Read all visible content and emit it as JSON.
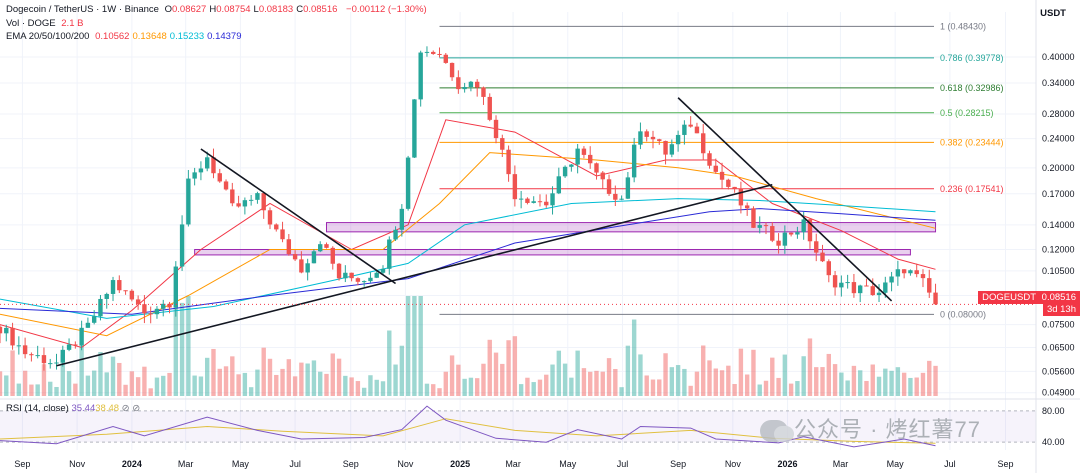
{
  "header": {
    "symbol": "Dogecoin / TetherUS · 1W · Binance",
    "ohlc": [
      {
        "k": "O",
        "v": "0.08627"
      },
      {
        "k": "H",
        "v": "0.08754"
      },
      {
        "k": "L",
        "v": "0.08183"
      },
      {
        "k": "C",
        "v": "0.08516"
      }
    ],
    "change": "−0.00112 (−1.30%)",
    "vol_label": "Vol · DOGE",
    "vol_value": "2.1 B",
    "ema_label": "EMA 20/50/100/200",
    "ema_values": [
      {
        "v": "0.10562",
        "color": "#f23645"
      },
      {
        "v": "0.13648",
        "color": "#ff9800"
      },
      {
        "v": "0.15233",
        "color": "#00bcd4"
      },
      {
        "v": "0.14379",
        "color": "#2a2ad6"
      }
    ],
    "rsi_label": "RSI (14, close)",
    "rsi_values": [
      {
        "v": "35.44",
        "color": "#7e57c2"
      },
      {
        "v": "38.48",
        "color": "#e0c040"
      }
    ]
  },
  "axis": {
    "unit": "USDT",
    "current_symbol": "DOGEUSDT",
    "current_price": "0.08516",
    "countdown": "3d 13h",
    "rsi_ticks": [
      "80.00",
      "40.00"
    ]
  },
  "watermark": "公众号 · 烤红薯77",
  "chart_data": {
    "type": "candlestick",
    "title": "Dogecoin / TetherUS · 1W · Binance",
    "y_scale": "log",
    "ylim": [
      0.048,
      0.53
    ],
    "y_ticks": [
      0.4,
      0.34,
      0.28,
      0.24,
      0.2,
      0.17,
      0.14,
      0.12,
      0.105,
      0.09,
      0.075,
      0.065,
      0.056,
      0.049
    ],
    "y_tick_labels": [
      "0.40000",
      "0.34000",
      "0.28000",
      "0.24000",
      "0.20000",
      "0.17000",
      "0.14000",
      "0.12000",
      "0.10500",
      "0.09000",
      "0.07500",
      "0.06500",
      "0.05600",
      "0.04900"
    ],
    "x_start": "2023-08-07",
    "x_end": "2026-10-05",
    "x_ticks": [
      {
        "d": "2023-09-01",
        "label": "Sep",
        "bold": false
      },
      {
        "d": "2023-11-01",
        "label": "Nov",
        "bold": false
      },
      {
        "d": "2024-01-01",
        "label": "2024",
        "bold": true
      },
      {
        "d": "2024-03-01",
        "label": "Mar",
        "bold": false
      },
      {
        "d": "2024-05-01",
        "label": "May",
        "bold": false
      },
      {
        "d": "2024-07-01",
        "label": "Jul",
        "bold": false
      },
      {
        "d": "2024-09-01",
        "label": "Sep",
        "bold": false
      },
      {
        "d": "2024-11-01",
        "label": "Nov",
        "bold": false
      },
      {
        "d": "2025-01-01",
        "label": "2025",
        "bold": true
      },
      {
        "d": "2025-03-01",
        "label": "Mar",
        "bold": false
      },
      {
        "d": "2025-05-01",
        "label": "May",
        "bold": false
      },
      {
        "d": "2025-07-01",
        "label": "Jul",
        "bold": false
      },
      {
        "d": "2025-09-01",
        "label": "Sep",
        "bold": false
      },
      {
        "d": "2025-11-01",
        "label": "Nov",
        "bold": false
      },
      {
        "d": "2026-01-01",
        "label": "2026",
        "bold": true
      },
      {
        "d": "2026-03-01",
        "label": "Mar",
        "bold": false
      },
      {
        "d": "2026-05-01",
        "label": "May",
        "bold": false
      },
      {
        "d": "2026-07-01",
        "label": "Jul",
        "bold": false
      },
      {
        "d": "2026-09-01",
        "label": "Sep",
        "bold": false
      }
    ],
    "anchors": [
      {
        "d": "2023-08-07",
        "p": 0.074
      },
      {
        "d": "2023-09-04",
        "p": 0.063
      },
      {
        "d": "2023-10-09",
        "p": 0.059
      },
      {
        "d": "2023-11-13",
        "p": 0.074
      },
      {
        "d": "2023-12-11",
        "p": 0.098
      },
      {
        "d": "2024-01-15",
        "p": 0.081
      },
      {
        "d": "2024-02-12",
        "p": 0.087
      },
      {
        "d": "2024-03-04",
        "p": 0.18
      },
      {
        "d": "2024-03-25",
        "p": 0.215
      },
      {
        "d": "2024-04-22",
        "p": 0.155
      },
      {
        "d": "2024-05-20",
        "p": 0.165
      },
      {
        "d": "2024-06-17",
        "p": 0.125
      },
      {
        "d": "2024-07-08",
        "p": 0.107
      },
      {
        "d": "2024-07-29",
        "p": 0.128
      },
      {
        "d": "2024-08-19",
        "p": 0.101
      },
      {
        "d": "2024-09-16",
        "p": 0.1
      },
      {
        "d": "2024-10-07",
        "p": 0.11
      },
      {
        "d": "2024-10-28",
        "p": 0.16
      },
      {
        "d": "2024-11-18",
        "p": 0.42
      },
      {
        "d": "2024-12-09",
        "p": 0.41
      },
      {
        "d": "2024-12-30",
        "p": 0.34
      },
      {
        "d": "2025-01-20",
        "p": 0.34
      },
      {
        "d": "2025-02-10",
        "p": 0.25
      },
      {
        "d": "2025-03-03",
        "p": 0.17
      },
      {
        "d": "2025-04-07",
        "p": 0.16
      },
      {
        "d": "2025-05-12",
        "p": 0.225
      },
      {
        "d": "2025-06-09",
        "p": 0.18
      },
      {
        "d": "2025-06-30",
        "p": 0.165
      },
      {
        "d": "2025-07-21",
        "p": 0.26
      },
      {
        "d": "2025-08-18",
        "p": 0.22
      },
      {
        "d": "2025-09-15",
        "p": 0.265
      },
      {
        "d": "2025-10-13",
        "p": 0.195
      },
      {
        "d": "2025-11-03",
        "p": 0.17
      },
      {
        "d": "2025-11-24",
        "p": 0.14
      },
      {
        "d": "2025-12-22",
        "p": 0.128
      },
      {
        "d": "2026-01-19",
        "p": 0.14
      },
      {
        "d": "2026-02-16",
        "p": 0.1
      },
      {
        "d": "2026-03-16",
        "p": 0.094
      },
      {
        "d": "2026-04-13",
        "p": 0.092
      },
      {
        "d": "2026-05-11",
        "p": 0.107
      },
      {
        "d": "2026-06-01",
        "p": 0.097
      },
      {
        "d": "2026-06-15",
        "p": 0.0852
      }
    ],
    "fib_levels": [
      {
        "ratio": "1",
        "value": "0.48430",
        "p": 0.4843,
        "color": "#787b86"
      },
      {
        "ratio": "0.786",
        "value": "0.39778",
        "p": 0.39778,
        "color": "#26a69a"
      },
      {
        "ratio": "0.618",
        "value": "0.32986",
        "p": 0.32986,
        "color": "#2e7d32"
      },
      {
        "ratio": "0.5",
        "value": "0.28215",
        "p": 0.28215,
        "color": "#4caf50"
      },
      {
        "ratio": "0.382",
        "value": "0.23444",
        "p": 0.23444,
        "color": "#ff9800"
      },
      {
        "ratio": "0.236",
        "value": "0.17541",
        "p": 0.17541,
        "color": "#f23645"
      },
      {
        "ratio": "0",
        "value": "0.08000",
        "p": 0.08,
        "color": "#787b86"
      }
    ],
    "fib_start": "2024-12-09",
    "zones": [
      {
        "from": "2024-08-05",
        "to": "2026-06-15",
        "low": 0.134,
        "high": 0.142
      },
      {
        "from": "2024-03-11",
        "to": "2026-05-18",
        "low": 0.116,
        "high": 0.12
      }
    ],
    "trendlines": [
      {
        "d1": "2024-03-18",
        "p1": 0.225,
        "d2": "2024-10-21",
        "p2": 0.097
      },
      {
        "d1": "2023-10-09",
        "p1": 0.058,
        "d2": "2025-12-15",
        "p2": 0.18
      },
      {
        "d1": "2025-09-01",
        "p1": 0.31,
        "d2": "2026-04-27",
        "p2": 0.087
      }
    ],
    "ema": [
      {
        "name": "EMA 20",
        "color": "#f23645",
        "pts": [
          [
            "2023-08-07",
            0.075
          ],
          [
            "2023-11-06",
            0.065
          ],
          [
            "2024-01-01",
            0.082
          ],
          [
            "2024-03-18",
            0.12
          ],
          [
            "2024-06-03",
            0.16
          ],
          [
            "2024-09-02",
            0.12
          ],
          [
            "2024-11-04",
            0.14
          ],
          [
            "2024-12-16",
            0.27
          ],
          [
            "2025-03-03",
            0.25
          ],
          [
            "2025-06-02",
            0.19
          ],
          [
            "2025-08-18",
            0.21
          ],
          [
            "2025-10-13",
            0.21
          ],
          [
            "2025-12-15",
            0.16
          ],
          [
            "2026-03-02",
            0.135
          ],
          [
            "2026-05-04",
            0.113
          ],
          [
            "2026-06-15",
            0.106
          ]
        ]
      },
      {
        "name": "EMA 50",
        "color": "#ff9800",
        "pts": [
          [
            "2023-08-07",
            0.08
          ],
          [
            "2023-12-04",
            0.07
          ],
          [
            "2024-03-04",
            0.09
          ],
          [
            "2024-06-03",
            0.12
          ],
          [
            "2024-10-07",
            0.12
          ],
          [
            "2024-12-09",
            0.16
          ],
          [
            "2025-02-03",
            0.22
          ],
          [
            "2025-06-02",
            0.21
          ],
          [
            "2025-09-01",
            0.2
          ],
          [
            "2025-11-03",
            0.19
          ],
          [
            "2026-02-02",
            0.165
          ],
          [
            "2026-06-15",
            0.137
          ]
        ]
      },
      {
        "name": "EMA 100",
        "color": "#00bcd4",
        "pts": [
          [
            "2023-08-07",
            0.088
          ],
          [
            "2023-12-04",
            0.078
          ],
          [
            "2024-04-01",
            0.084
          ],
          [
            "2024-08-05",
            0.098
          ],
          [
            "2024-11-04",
            0.11
          ],
          [
            "2025-01-06",
            0.14
          ],
          [
            "2025-05-05",
            0.16
          ],
          [
            "2025-09-01",
            0.165
          ],
          [
            "2025-12-01",
            0.163
          ],
          [
            "2026-03-02",
            0.158
          ],
          [
            "2026-06-15",
            0.152
          ]
        ]
      },
      {
        "name": "EMA 200",
        "color": "#2a2ad6",
        "pts": [
          [
            "2023-08-07",
            0.083
          ],
          [
            "2024-01-01",
            0.08
          ],
          [
            "2024-06-03",
            0.09
          ],
          [
            "2024-11-04",
            0.1
          ],
          [
            "2025-03-03",
            0.125
          ],
          [
            "2025-07-07",
            0.14
          ],
          [
            "2025-10-06",
            0.152
          ],
          [
            "2025-12-01",
            0.155
          ],
          [
            "2026-03-02",
            0.15
          ],
          [
            "2026-06-15",
            0.144
          ]
        ]
      }
    ],
    "rsi": {
      "ylim": [
        30,
        90
      ],
      "ticks": [
        80,
        40
      ],
      "pts": [
        [
          "2023-08-07",
          42
        ],
        [
          "2023-10-09",
          38
        ],
        [
          "2023-12-11",
          60
        ],
        [
          "2024-01-15",
          48
        ],
        [
          "2024-03-25",
          72
        ],
        [
          "2024-05-20",
          55
        ],
        [
          "2024-07-08",
          44
        ],
        [
          "2024-09-16",
          46
        ],
        [
          "2024-10-28",
          56
        ],
        [
          "2024-11-25",
          86
        ],
        [
          "2024-12-16",
          68
        ],
        [
          "2025-02-10",
          45
        ],
        [
          "2025-04-07",
          40
        ],
        [
          "2025-05-12",
          56
        ],
        [
          "2025-06-30",
          44
        ],
        [
          "2025-07-21",
          60
        ],
        [
          "2025-09-15",
          58
        ],
        [
          "2025-10-13",
          44
        ],
        [
          "2025-12-22",
          39
        ],
        [
          "2026-01-19",
          47
        ],
        [
          "2026-03-16",
          34
        ],
        [
          "2026-05-11",
          44
        ],
        [
          "2026-06-15",
          35.4
        ]
      ],
      "ma_pts": [
        [
          "2023-08-07",
          44
        ],
        [
          "2023-12-04",
          50
        ],
        [
          "2024-03-25",
          60
        ],
        [
          "2024-06-17",
          54
        ],
        [
          "2024-10-07",
          48
        ],
        [
          "2024-12-16",
          70
        ],
        [
          "2025-03-03",
          55
        ],
        [
          "2025-06-02",
          48
        ],
        [
          "2025-09-15",
          55
        ],
        [
          "2025-12-15",
          45
        ],
        [
          "2026-03-16",
          41
        ],
        [
          "2026-06-15",
          38.5
        ]
      ]
    }
  }
}
